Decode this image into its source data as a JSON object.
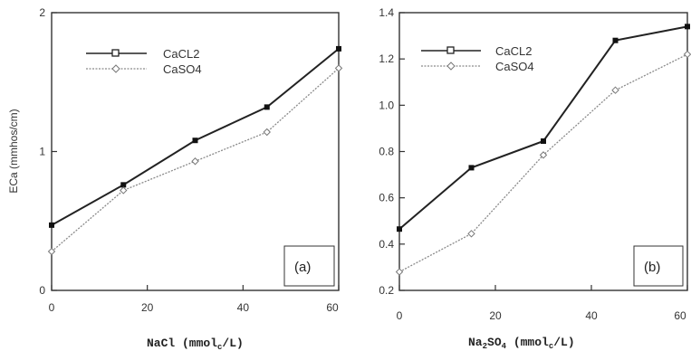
{
  "chart_data": [
    {
      "type": "line",
      "panel_label": "(a)",
      "xlabel": "NaCl (mmolc/L)",
      "xlabel_main": "NaCl (mmol",
      "xlabel_sub": "c",
      "xlabel_tail": "/L)",
      "ylabel": "ECa (mmhos/cm)",
      "xlim": [
        0,
        60
      ],
      "ylim": [
        0,
        2
      ],
      "xticks": [
        "0",
        "20",
        "40",
        "60"
      ],
      "yticks": [
        "0",
        "1",
        "2"
      ],
      "legend_position": "top-left",
      "grid": false,
      "series": [
        {
          "name": "CaCL2",
          "x": [
            0,
            15,
            30,
            45,
            60
          ],
          "y": [
            0.47,
            0.76,
            1.08,
            1.32,
            1.74
          ]
        },
        {
          "name": "CaSO4",
          "x": [
            0,
            15,
            30,
            45,
            60
          ],
          "y": [
            0.28,
            0.72,
            0.93,
            1.14,
            1.6
          ]
        }
      ]
    },
    {
      "type": "line",
      "panel_label": "(b)",
      "xlabel": "Na2SO4 (mmolc/L)",
      "xlabel_main": "Na",
      "xlabel_sub1": "2",
      "xlabel_mid": "SO",
      "xlabel_sub2": "4",
      "xlabel_mid2": " (mmol",
      "xlabel_sub": "c",
      "xlabel_tail": "/L)",
      "xlim": [
        0,
        60
      ],
      "ylim": [
        0.2,
        1.4
      ],
      "xticks": [
        "0",
        "20",
        "40",
        "60"
      ],
      "yticks": [
        "0.2",
        "0.4",
        "0.6",
        "0.8",
        "1.0",
        "1.2",
        "1.4"
      ],
      "legend_position": "top-left",
      "grid": false,
      "series": [
        {
          "name": "CaCL2",
          "x": [
            0,
            15,
            30,
            45,
            60
          ],
          "y": [
            0.465,
            0.73,
            0.845,
            1.28,
            1.34
          ]
        },
        {
          "name": "CaSO4",
          "x": [
            0,
            15,
            30,
            45,
            60
          ],
          "y": [
            0.28,
            0.445,
            0.785,
            1.065,
            1.22
          ]
        }
      ]
    }
  ],
  "colors": {
    "series1": "#222222",
    "series2": "#8a8a8a",
    "axis": "#333333"
  }
}
